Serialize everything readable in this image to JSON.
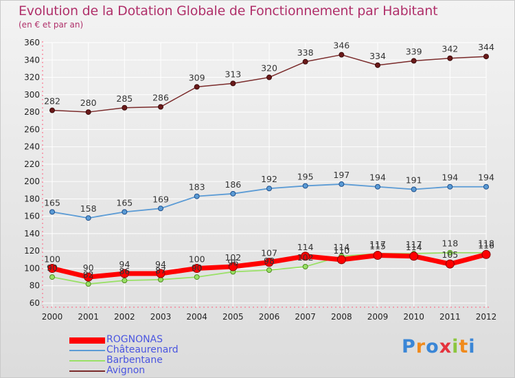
{
  "header": {
    "title": "Evolution de la Dotation Globale de Fonctionnement par Habitant",
    "subtitle": "(en € et par an)"
  },
  "brand": {
    "text": "Proxiti",
    "colors": [
      "#3a86d6",
      "#f08a1c",
      "#3a86d6",
      "#e5333d",
      "#8cc63e",
      "#f08a1c",
      "#3a86d6"
    ]
  },
  "chart_data": {
    "type": "line",
    "x": [
      "2000",
      "2001",
      "2002",
      "2003",
      "2004",
      "2005",
      "2006",
      "2007",
      "2008",
      "2009",
      "2010",
      "2011",
      "2012"
    ],
    "ylim": [
      60,
      360
    ],
    "yticks": [
      "60",
      "80",
      "100",
      "120",
      "140",
      "160",
      "180",
      "200",
      "220",
      "240",
      "260",
      "280",
      "300",
      "320",
      "340",
      "360"
    ],
    "grid": true,
    "legend_position": "bottom-left",
    "series": [
      {
        "name": "ROGNONAS",
        "color": "#ff0000",
        "values": [
          100,
          90,
          94,
          94,
          100,
          102,
          107,
          114,
          110,
          115,
          114,
          105,
          116
        ],
        "labels": [
          "100",
          "90",
          "94",
          "94",
          "100",
          "102",
          "107",
          "114",
          "110",
          "115",
          "114",
          "105",
          "116"
        ]
      },
      {
        "name": "Châteaurenard",
        "color": "#5b9bd5",
        "values": [
          165,
          158,
          165,
          169,
          183,
          186,
          192,
          195,
          197,
          194,
          191,
          194,
          194
        ],
        "labels": [
          "165",
          "158",
          "165",
          "169",
          "183",
          "186",
          "192",
          "195",
          "197",
          "194",
          "191",
          "194",
          "194"
        ]
      },
      {
        "name": "Barbentane",
        "color": "#99e066",
        "values": [
          90,
          82,
          86,
          87,
          90,
          96,
          98,
          102,
          114,
          117,
          117,
          118,
          118
        ],
        "labels": [
          "90",
          "82",
          "86",
          "87",
          "90",
          "96",
          "98",
          "102",
          "114",
          "117",
          "117",
          "118",
          "118"
        ]
      },
      {
        "name": "Avignon",
        "color": "#7a2a2a",
        "values": [
          282,
          280,
          285,
          286,
          309,
          313,
          320,
          338,
          346,
          334,
          339,
          342,
          344
        ],
        "labels": [
          "282",
          "280",
          "285",
          "286",
          "309",
          "313",
          "320",
          "338",
          "346",
          "334",
          "339",
          "342",
          "344"
        ]
      }
    ]
  }
}
